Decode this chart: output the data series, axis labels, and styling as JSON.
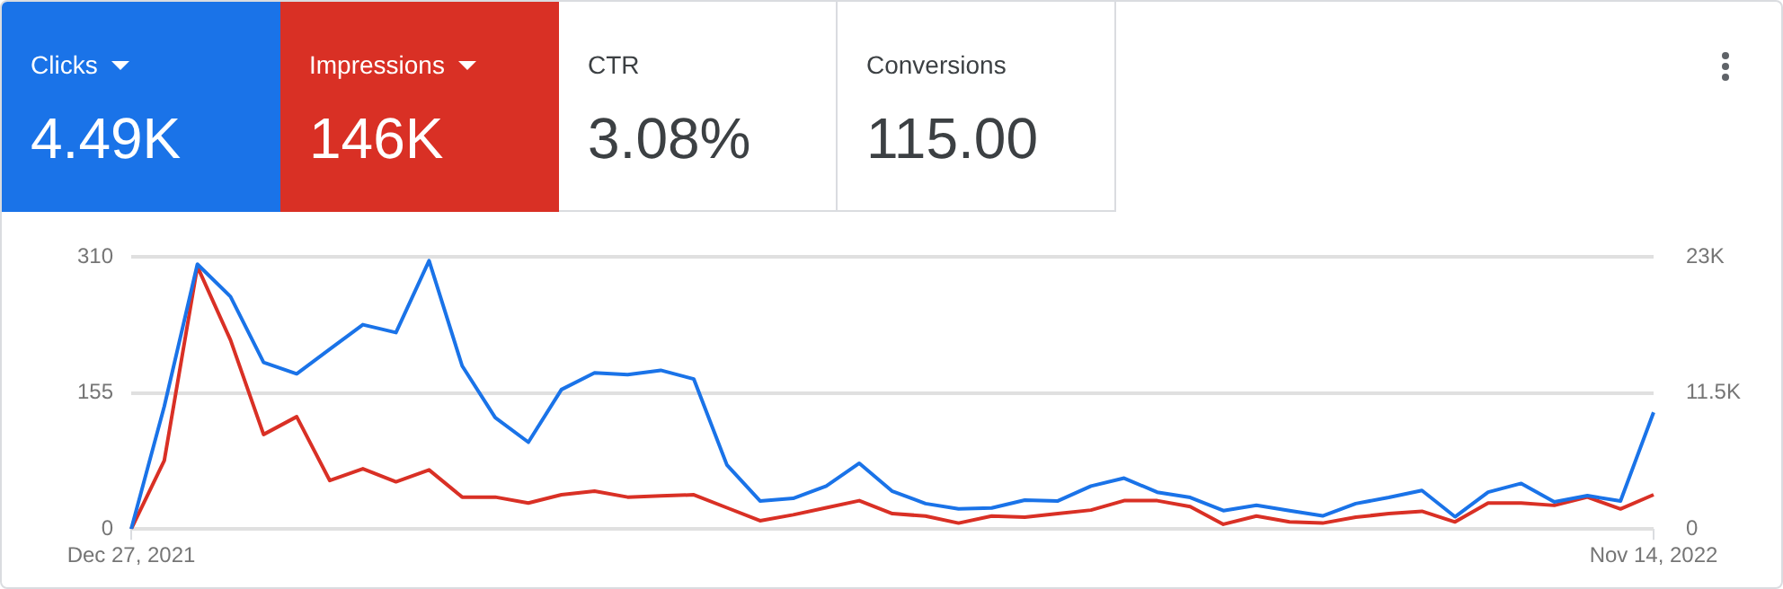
{
  "chart_data": {
    "type": "line",
    "categories": [
      "Dec 27, 2021",
      null,
      null,
      null,
      null,
      null,
      null,
      null,
      null,
      null,
      null,
      null,
      null,
      null,
      null,
      null,
      null,
      null,
      null,
      null,
      null,
      null,
      null,
      null,
      null,
      null,
      null,
      null,
      null,
      null,
      null,
      null,
      null,
      null,
      null,
      null,
      null,
      null,
      null,
      null,
      null,
      null,
      null,
      null,
      null,
      null,
      "Nov 14, 2022"
    ],
    "series": [
      {
        "name": "Clicks",
        "color": "#1a73e8",
        "values": [
          0,
          140,
          302,
          265,
          190,
          177,
          205,
          233,
          224,
          306,
          186,
          127,
          99,
          159,
          178,
          176,
          181,
          171,
          73,
          32,
          35,
          49,
          75,
          43,
          29,
          23,
          24,
          33,
          32,
          49,
          58,
          42,
          36,
          21,
          27,
          21,
          15,
          29,
          36,
          44,
          14,
          42,
          52,
          31,
          38,
          32,
          133
        ]
      },
      {
        "name": "Impressions",
        "color": "#d93025",
        "axis": "y2",
        "values": [
          0,
          5800,
          22200,
          16000,
          8000,
          9500,
          4100,
          5100,
          4000,
          5000,
          2700,
          2700,
          2200,
          2900,
          3200,
          2700,
          2800,
          2900,
          1800,
          700,
          1200,
          1800,
          2400,
          1300,
          1100,
          500,
          1100,
          1000,
          1300,
          1600,
          2400,
          2400,
          1900,
          400,
          1100,
          600,
          500,
          1000,
          1300,
          1500,
          600,
          2200,
          2200,
          2000,
          2700,
          1700,
          2900
        ]
      }
    ],
    "ylim": [
      0,
      310
    ],
    "yticks": [
      0,
      155,
      310
    ],
    "y2lim": [
      0,
      23000
    ],
    "y2ticks": [
      0,
      {
        "value": 11500,
        "label": "11.5K"
      },
      {
        "value": 23000,
        "label": "23K"
      }
    ],
    "annotations": [
      "4.49K",
      "146K",
      "CTR",
      "3.08%",
      "Conversions",
      "115.00"
    ],
    "grid": "y",
    "legend": "top left",
    "marker": "none",
    "line_style": "solid"
  }
}
